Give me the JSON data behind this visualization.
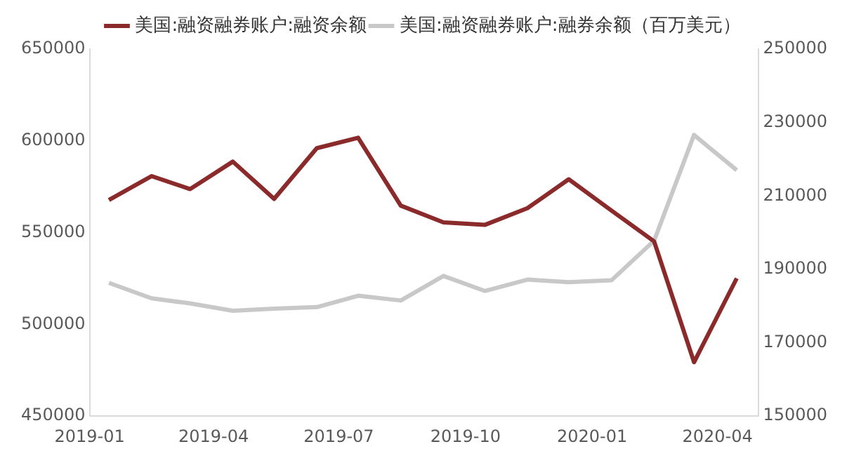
{
  "chart_data": {
    "type": "line",
    "legend": "top",
    "grid": false,
    "marker": "none",
    "line_style": "solid",
    "xlim": [
      "2019-01",
      "2020-05"
    ],
    "xticks": [
      "2019-01",
      "2019-04",
      "2019-07",
      "2019-10",
      "2020-01",
      "2020-04"
    ],
    "x": [
      "2019-01-15",
      "2019-02-15",
      "2019-03-15",
      "2019-04-15",
      "2019-05-15",
      "2019-06-15",
      "2019-07-15",
      "2019-08-15",
      "2019-09-15",
      "2019-10-15",
      "2019-11-15",
      "2019-12-15",
      "2020-01-15",
      "2020-02-15",
      "2020-03-15",
      "2020-04-15"
    ],
    "ylim": [
      450000,
      650000
    ],
    "yticks": [
      450000,
      500000,
      550000,
      600000,
      650000
    ],
    "y2lim": [
      150000,
      250000
    ],
    "y2ticks": [
      150000,
      170000,
      190000,
      210000,
      230000,
      250000
    ],
    "series": [
      {
        "name": "美国:融资融券账户:融资余额",
        "color": "#8b2a2a",
        "values": [
          567800,
          580800,
          573700,
          588700,
          568400,
          596000,
          601700,
          564700,
          555600,
          554200,
          563300,
          579100,
          562000,
          545200,
          479400,
          525100
        ]
      },
      {
        "name": "美国:融资融券账户:融券余额（百万美元）",
        "color": "#c8c8c8",
        "axis": "y2",
        "values": [
          186300,
          182100,
          180700,
          178700,
          179300,
          179700,
          182800,
          181500,
          188200,
          184100,
          187200,
          186500,
          187000,
          197800,
          226600,
          217000
        ]
      }
    ]
  }
}
